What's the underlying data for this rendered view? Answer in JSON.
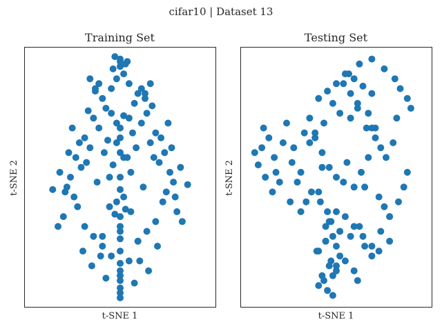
{
  "figure": {
    "suptitle": "cifar10 | Dataset 13"
  },
  "colors": {
    "marker": "#1f77b4",
    "axes_edge": "#262626",
    "background": "#ffffff"
  },
  "chart_data": [
    {
      "type": "scatter",
      "title": "Training Set",
      "xlabel": "t-SNE 1",
      "ylabel": "t-SNE 2",
      "xticks": [],
      "yticks": [],
      "grid": false,
      "legend": "none",
      "xlim": [
        0,
        100
      ],
      "ylim": [
        0,
        100
      ],
      "series": [
        {
          "color": "#1f77b4",
          "x": [
            50,
            48,
            52,
            45,
            55,
            40,
            60,
            42,
            58,
            35,
            65,
            38,
            62,
            30,
            70,
            33,
            67,
            25,
            75,
            28,
            72,
            22,
            78,
            20,
            80,
            24,
            76,
            50,
            46,
            54,
            44,
            56,
            50,
            48,
            52,
            47,
            53,
            30,
            70,
            35,
            65,
            50,
            50,
            45,
            55,
            40,
            60,
            50,
            50,
            26,
            74,
            18,
            82,
            15,
            85,
            12,
            88,
            16,
            84,
            50,
            43,
            57,
            41,
            59,
            52,
            48,
            36,
            64,
            32,
            68,
            38,
            62,
            50,
            46,
            54,
            50,
            50,
            44,
            56,
            50,
            29,
            71,
            21,
            79,
            50,
            50,
            34,
            66,
            39,
            61,
            50,
            48,
            52,
            45,
            55,
            37,
            63,
            31,
            69,
            27,
            73,
            23,
            77,
            19,
            81,
            50,
            50,
            42,
            58,
            50,
            50,
            40,
            60,
            36,
            64,
            33,
            67,
            50,
            47,
            53
          ],
          "y": [
            95,
            90,
            92,
            86,
            88,
            82,
            84,
            78,
            80,
            74,
            76,
            70,
            72,
            66,
            68,
            62,
            64,
            58,
            60,
            54,
            56,
            50,
            52,
            46,
            48,
            42,
            44,
            60,
            55,
            58,
            50,
            52,
            45,
            40,
            42,
            35,
            37,
            30,
            32,
            26,
            28,
            20,
            12,
            18,
            16,
            22,
            24,
            8,
            5,
            38,
            40,
            34,
            36,
            30,
            32,
            45,
            47,
            52,
            54,
            70,
            65,
            68,
            60,
            62,
            75,
            72,
            85,
            82,
            77,
            79,
            88,
            86,
            98,
            94,
            97,
            50,
            30,
            38,
            36,
            25,
            20,
            22,
            60,
            62,
            15,
            10,
            14,
            12,
            18,
            16,
            66,
            64,
            58,
            76,
            74,
            48,
            46,
            56,
            58,
            64,
            66,
            70,
            72,
            44,
            42,
            3,
            1,
            9,
            7,
            34,
            28,
            26,
            24,
            86,
            84,
            90,
            88,
            97,
            99,
            96
          ]
        }
      ]
    },
    {
      "type": "scatter",
      "title": "Testing Set",
      "xlabel": "t-SNE 1",
      "ylabel": "t-SNE 2",
      "xticks": [],
      "yticks": [],
      "grid": false,
      "legend": "none",
      "xlim": [
        0,
        100
      ],
      "ylim": [
        0,
        100
      ],
      "series": [
        {
          "color": "#1f77b4",
          "x": [
            55,
            50,
            60,
            45,
            65,
            40,
            70,
            48,
            62,
            52,
            58,
            43,
            67,
            38,
            72,
            35,
            75,
            42,
            68,
            56,
            46,
            64,
            50,
            54,
            60,
            36,
            74,
            33,
            77,
            30,
            80,
            47,
            63,
            52,
            58,
            44,
            66,
            40,
            70,
            55,
            50,
            60,
            48,
            62,
            12,
            8,
            15,
            6,
            10,
            18,
            14,
            4,
            20,
            16,
            9,
            22,
            25,
            28,
            30,
            26,
            24,
            32,
            35,
            38,
            42,
            40,
            45,
            44,
            48,
            50,
            52,
            46,
            42,
            40,
            45,
            48,
            43,
            50,
            47,
            39,
            44,
            52,
            46,
            50,
            41,
            55,
            60,
            65,
            70,
            75,
            80,
            85,
            88,
            90,
            78,
            82,
            72,
            68,
            62,
            58,
            54,
            57,
            63,
            70,
            77,
            83,
            86,
            90,
            92,
            84,
            70,
            66,
            74,
            80
          ],
          "y": [
            92,
            88,
            90,
            85,
            87,
            82,
            84,
            80,
            78,
            76,
            74,
            72,
            70,
            68,
            66,
            64,
            62,
            60,
            58,
            56,
            54,
            52,
            50,
            48,
            46,
            44,
            42,
            40,
            38,
            36,
            34,
            32,
            30,
            28,
            26,
            24,
            22,
            20,
            18,
            16,
            14,
            12,
            10,
            8,
            66,
            62,
            58,
            55,
            50,
            48,
            44,
            60,
            64,
            52,
            70,
            72,
            56,
            48,
            52,
            62,
            40,
            68,
            74,
            66,
            54,
            44,
            36,
            30,
            26,
            22,
            18,
            14,
            10,
            6,
            4,
            2,
            8,
            12,
            16,
            20,
            24,
            28,
            32,
            36,
            40,
            34,
            30,
            26,
            22,
            28,
            34,
            40,
            46,
            52,
            58,
            64,
            70,
            76,
            80,
            84,
            88,
            92,
            96,
            98,
            94,
            90,
            86,
            82,
            78,
            74,
            70,
            46,
            20,
            24
          ]
        }
      ]
    }
  ]
}
